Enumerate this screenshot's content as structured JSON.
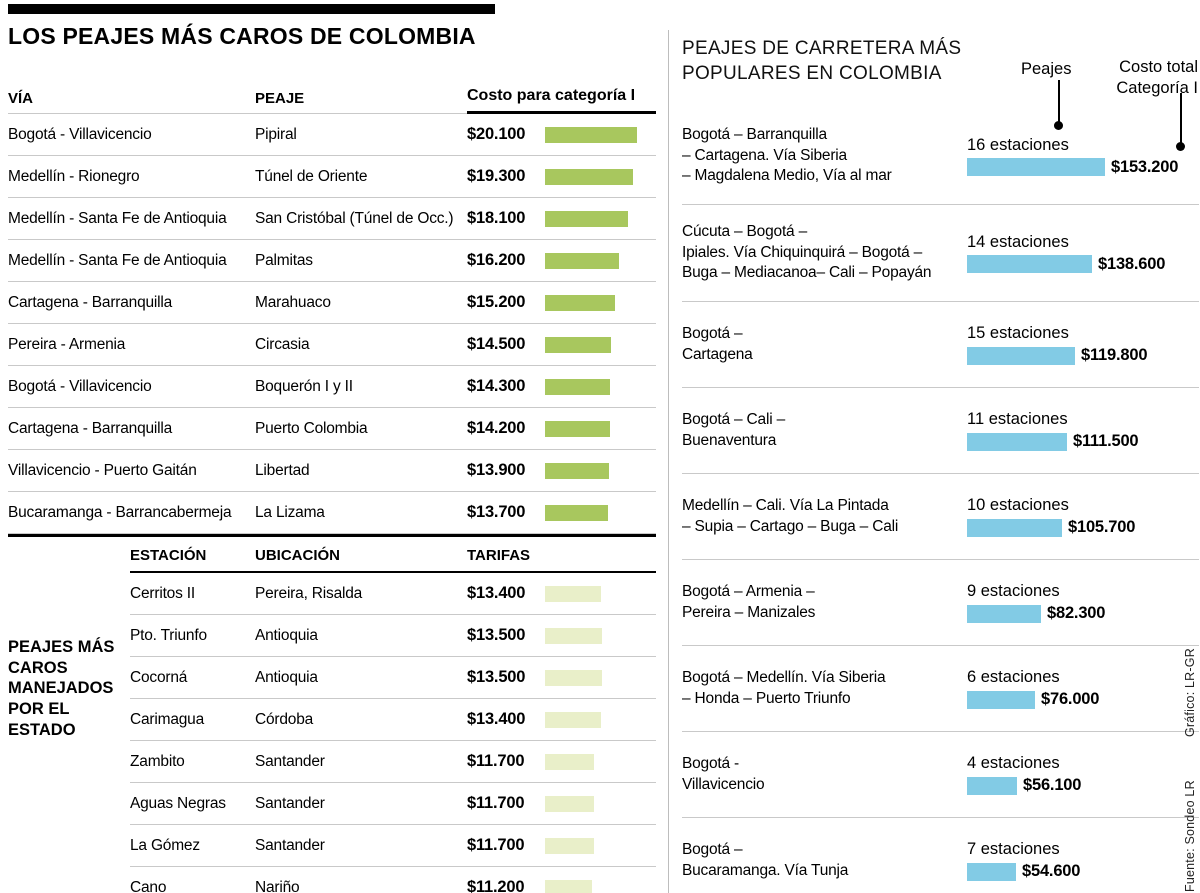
{
  "title": "LOS PEAJES MÁS CAROS DE COLOMBIA",
  "expensive_tolls": {
    "headers": {
      "via": "VÍA",
      "peaje": "PEAJE",
      "cost": "Costo para categoría I"
    },
    "bar_color": "#a8c75e",
    "rows": [
      {
        "via": "Bogotá - Villavicencio",
        "peaje": "Pipiral",
        "cost": "$20.100",
        "value": 20100
      },
      {
        "via": "Medellín - Rionegro",
        "peaje": "Túnel de Oriente",
        "cost": "$19.300",
        "value": 19300
      },
      {
        "via": "Medellín - Santa Fe de Antioquia",
        "peaje": "San Cristóbal (Túnel de Occ.)",
        "cost": "$18.100",
        "value": 18100
      },
      {
        "via": "Medellín - Santa Fe de Antioquia",
        "peaje": "Palmitas",
        "cost": "$16.200",
        "value": 16200
      },
      {
        "via": "Cartagena - Barranquilla",
        "peaje": "Marahuaco",
        "cost": "$15.200",
        "value": 15200
      },
      {
        "via": "Pereira - Armenia",
        "peaje": "Circasia",
        "cost": "$14.500",
        "value": 14500
      },
      {
        "via": "Bogotá - Villavicencio",
        "peaje": "Boquerón I y II",
        "cost": "$14.300",
        "value": 14300
      },
      {
        "via": "Cartagena - Barranquilla",
        "peaje": "Puerto Colombia",
        "cost": "$14.200",
        "value": 14200
      },
      {
        "via": "Villavicencio - Puerto Gaitán",
        "peaje": "Libertad",
        "cost": "$13.900",
        "value": 13900
      },
      {
        "via": "Bucaramanga - Barrancabermeja",
        "peaje": "La Lizama",
        "cost": "$13.700",
        "value": 13700
      }
    ]
  },
  "state_tolls": {
    "label": "PEAJES MÁS\nCAROS\nMANEJADOS\nPOR EL\nESTADO",
    "headers": {
      "station": "ESTACIÓN",
      "location": "UBICACIÓN",
      "tariff": "TARIFAS"
    },
    "bar_color": "#e9efc9",
    "rows": [
      {
        "station": "Cerritos II",
        "location": "Pereira, Risalda",
        "tariff": "$13.400",
        "value": 13400
      },
      {
        "station": "Pto. Triunfo",
        "location": "Antioquia",
        "tariff": "$13.500",
        "value": 13500
      },
      {
        "station": "Cocorná",
        "location": "Antioquia",
        "tariff": "$13.500",
        "value": 13500
      },
      {
        "station": "Carimagua",
        "location": "Córdoba",
        "tariff": "$13.400",
        "value": 13400
      },
      {
        "station": "Zambito",
        "location": "Santander",
        "tariff": "$11.700",
        "value": 11700
      },
      {
        "station": "Aguas Negras",
        "location": "Santander",
        "tariff": "$11.700",
        "value": 11700
      },
      {
        "station": "La Gómez",
        "location": "Santander",
        "tariff": "$11.700",
        "value": 11700
      },
      {
        "station": "Cano",
        "location": "Nariño",
        "tariff": "$11.200",
        "value": 11200
      }
    ]
  },
  "popular_routes": {
    "title": "PEAJES DE CARRETERA MÁS\nPOPULARES EN COLOMBIA",
    "legend": {
      "stations": "Peajes",
      "cost": "Costo total\nCategoría I"
    },
    "bar_color": "#82cbe5",
    "rows": [
      {
        "route": "Bogotá – Barranquilla\n– Cartagena. Vía Siberia\n– Magdalena Medio, Vía al mar",
        "stations": "16 estaciones",
        "cost": "$153.200",
        "value": 153200
      },
      {
        "route": "Cúcuta – Bogotá –\nIpiales. Vía Chiquinquirá – Bogotá –\nBuga – Mediacanoa– Cali – Popayán",
        "stations": "14 estaciones",
        "cost": "$138.600",
        "value": 138600
      },
      {
        "route": "Bogotá –\nCartagena",
        "stations": "15 estaciones",
        "cost": "$119.800",
        "value": 119800
      },
      {
        "route": "Bogotá – Cali –\nBuenaventura",
        "stations": "11 estaciones",
        "cost": "$111.500",
        "value": 111500
      },
      {
        "route": "Medellín – Cali. Vía La Pintada\n– Supia – Cartago – Buga – Cali",
        "stations": "10 estaciones",
        "cost": "$105.700",
        "value": 105700
      },
      {
        "route": "Bogotá – Armenia –\nPereira – Manizales",
        "stations": "9 estaciones",
        "cost": "$82.300",
        "value": 82300
      },
      {
        "route": "Bogotá – Medellín. Vía Siberia\n– Honda – Puerto Triunfo",
        "stations": "6 estaciones",
        "cost": "$76.000",
        "value": 76000
      },
      {
        "route": "Bogotá -\nVillavicencio",
        "stations": "4 estaciones",
        "cost": "$56.100",
        "value": 56100
      },
      {
        "route": "Bogotá –\nBucaramanga. Vía Tunja",
        "stations": "7 estaciones",
        "cost": "$54.600",
        "value": 54600
      }
    ]
  },
  "credits": {
    "graphic": "Gráfico: LR-GR",
    "source": "Fuente: Sondeo LR"
  },
  "chart_data": [
    {
      "type": "bar",
      "orientation": "horizontal",
      "title": "LOS PEAJES MÁS CAROS DE COLOMBIA",
      "xlabel": "Costo para categoría I (COP)",
      "categories": [
        "Pipiral",
        "Túnel de Oriente",
        "San Cristóbal (Túnel de Occ.)",
        "Palmitas",
        "Marahuaco",
        "Circasia",
        "Boquerón I y II",
        "Puerto Colombia",
        "Libertad",
        "La Lizama"
      ],
      "values": [
        20100,
        19300,
        18100,
        16200,
        15200,
        14500,
        14300,
        14200,
        13900,
        13700
      ],
      "bar_color": "#a8c75e",
      "grid": false,
      "legend_position": "none"
    },
    {
      "type": "bar",
      "orientation": "horizontal",
      "title": "PEAJES MÁS CAROS MANEJADOS POR EL ESTADO",
      "xlabel": "TARIFAS (COP)",
      "categories": [
        "Cerritos II",
        "Pto. Triunfo",
        "Cocorná",
        "Carimagua",
        "Zambito",
        "Aguas Negras",
        "La Gómez",
        "Cano"
      ],
      "values": [
        13400,
        13500,
        13500,
        13400,
        11700,
        11700,
        11700,
        11200
      ],
      "bar_color": "#e9efc9",
      "grid": false,
      "legend_position": "none"
    },
    {
      "type": "bar",
      "orientation": "horizontal",
      "title": "PEAJES DE CARRETERA MÁS POPULARES EN COLOMBIA",
      "categories": [
        "Bogotá – Barranquilla – Cartagena. Vía Siberia – Magdalena Medio, Vía al mar",
        "Cúcuta – Bogotá – Ipiales. Vía Chiquinquirá – Bogotá – Buga – Mediacanoa– Cali – Popayán",
        "Bogotá – Cartagena",
        "Bogotá – Cali – Buenaventura",
        "Medellín – Cali. Vía La Pintada – Supia – Cartago – Buga – Cali",
        "Bogotá – Armenia – Pereira – Manizales",
        "Bogotá – Medellín. Vía Siberia – Honda – Puerto Triunfo",
        "Bogotá - Villavicencio",
        "Bogotá – Bucaramanga. Vía Tunja"
      ],
      "series": [
        {
          "name": "Peajes (estaciones)",
          "values": [
            16,
            14,
            15,
            11,
            10,
            9,
            6,
            4,
            7
          ]
        },
        {
          "name": "Costo total Categoría I (COP)",
          "values": [
            153200,
            138600,
            119800,
            111500,
            105700,
            82300,
            76000,
            56100,
            54600
          ]
        }
      ],
      "bar_color": "#82cbe5",
      "grid": false,
      "legend_position": "top-right"
    }
  ]
}
